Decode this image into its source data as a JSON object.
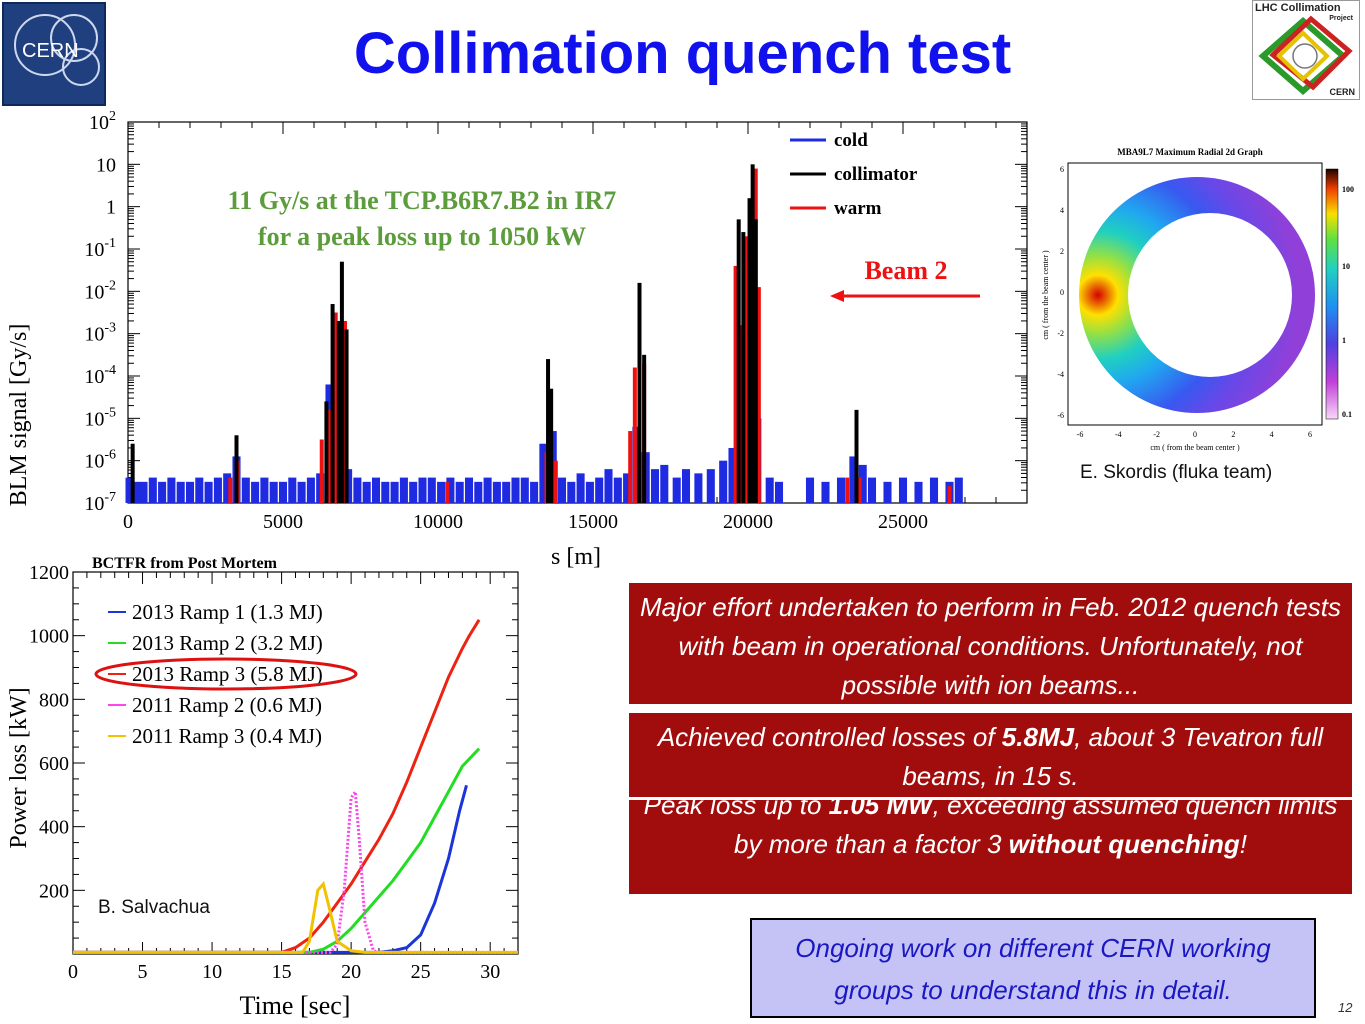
{
  "slide": {
    "title": "Collimation quench test",
    "page_number": "12"
  },
  "logos": {
    "cern_text": "CERN",
    "lhc_line1": "LHC Collimation",
    "lhc_line2": "Project",
    "lhc_line3": "CERN"
  },
  "annotations": {
    "blm_line1": "11 Gy/s at the TCP.B6R7.B2 in IR7",
    "blm_line2": "for a peak loss up to 1050 kW",
    "beam_label": "Beam 2",
    "fluka_credit": "E. Skordis (fluka team)",
    "power_credit": "B. Salvachua"
  },
  "text_boxes": {
    "box1": "Major effort undertaken to perform in Feb. 2012 quench tests with beam in operational conditions. Unfortunately, not possible with ion beams...",
    "box2_a": "Achieved controlled losses of ",
    "box2_b": "5.8MJ",
    "box2_c": ", about 3 Tevatron full beams, in 15 s.",
    "box_hidden_a": "Peak loss up to ",
    "box_hidden_b": "1.05 MW",
    "box_hidden_c": ", exceeding assumed quench limits by more than a factor 3 ",
    "box_hidden_d": "without quenching",
    "box_hidden_e": "!",
    "box3": "Ongoing work on different CERN working groups to understand this in detail."
  },
  "colors": {
    "title": "#1111ee",
    "cold": "#1f2be0",
    "collimator": "#000000",
    "warm": "#ee1111",
    "annotation_green": "#5c9c3c",
    "red_box": "#a10c0c",
    "blue_box": "#c5c3f6"
  },
  "chart_data": [
    {
      "type": "bar",
      "name": "blm",
      "title": "",
      "xlabel": "s [m]",
      "ylabel": "BLM signal [Gy/s]",
      "x_ticks": [
        "0",
        "5000",
        "10000",
        "15000",
        "20000",
        "25000"
      ],
      "xlim": [
        0,
        29000
      ],
      "ylim_log10": [
        -7,
        2
      ],
      "y_ticks": [
        {
          "base": "10",
          "exp": "2"
        },
        {
          "base": "10",
          "exp": ""
        },
        {
          "base": "1",
          "exp": ""
        },
        {
          "base": "10",
          "exp": "-1"
        },
        {
          "base": "10",
          "exp": "-2"
        },
        {
          "base": "10",
          "exp": "-3"
        },
        {
          "base": "10",
          "exp": "-4"
        },
        {
          "base": "10",
          "exp": "-5"
        },
        {
          "base": "10",
          "exp": "-6"
        },
        {
          "base": "10",
          "exp": "-7"
        }
      ],
      "legend": [
        {
          "name": "cold",
          "color": "#1f2be0"
        },
        {
          "name": "collimator",
          "color": "#000000"
        },
        {
          "name": "warm",
          "color": "#ee1111"
        }
      ],
      "legend_position": "top-right",
      "grid": false,
      "series": [
        {
          "name": "cold",
          "points": [
            [
              50,
              -6.4
            ],
            [
              250,
              -6.5
            ],
            [
              500,
              -6.5
            ],
            [
              800,
              -6.4
            ],
            [
              1100,
              -6.5
            ],
            [
              1400,
              -6.4
            ],
            [
              1700,
              -6.5
            ],
            [
              2000,
              -6.5
            ],
            [
              2300,
              -6.4
            ],
            [
              2600,
              -6.5
            ],
            [
              2900,
              -6.4
            ],
            [
              3200,
              -6.3
            ],
            [
              3500,
              -5.9
            ],
            [
              3800,
              -6.4
            ],
            [
              4100,
              -6.5
            ],
            [
              4400,
              -6.4
            ],
            [
              4700,
              -6.5
            ],
            [
              5000,
              -6.5
            ],
            [
              5300,
              -6.4
            ],
            [
              5600,
              -6.5
            ],
            [
              5900,
              -6.4
            ],
            [
              6200,
              -6.3
            ],
            [
              6500,
              -4.2
            ],
            [
              6800,
              -5.2
            ],
            [
              7100,
              -6.2
            ],
            [
              7400,
              -6.4
            ],
            [
              7700,
              -6.5
            ],
            [
              8000,
              -6.4
            ],
            [
              8300,
              -6.5
            ],
            [
              8600,
              -6.5
            ],
            [
              8900,
              -6.4
            ],
            [
              9200,
              -6.5
            ],
            [
              9500,
              -6.4
            ],
            [
              9800,
              -6.4
            ],
            [
              10100,
              -6.5
            ],
            [
              10400,
              -6.4
            ],
            [
              10700,
              -6.5
            ],
            [
              11000,
              -6.4
            ],
            [
              11300,
              -6.5
            ],
            [
              11600,
              -6.4
            ],
            [
              11900,
              -6.5
            ],
            [
              12200,
              -6.5
            ],
            [
              12500,
              -6.4
            ],
            [
              12800,
              -6.4
            ],
            [
              13100,
              -6.5
            ],
            [
              13400,
              -5.6
            ],
            [
              13700,
              -5.3
            ],
            [
              14000,
              -6.4
            ],
            [
              14300,
              -6.5
            ],
            [
              14600,
              -6.3
            ],
            [
              14900,
              -6.5
            ],
            [
              15200,
              -6.4
            ],
            [
              15500,
              -6.2
            ],
            [
              15800,
              -6.4
            ],
            [
              16100,
              -6.3
            ],
            [
              16400,
              -5.2
            ],
            [
              16700,
              -5.8
            ],
            [
              17000,
              -6.2
            ],
            [
              17300,
              -6.1
            ],
            [
              17700,
              -6.4
            ],
            [
              18000,
              -6.2
            ],
            [
              18400,
              -6.3
            ],
            [
              18800,
              -6.2
            ],
            [
              19200,
              -6.0
            ],
            [
              19500,
              -5.7
            ],
            [
              19800,
              -4.0
            ],
            [
              20000,
              -3.0
            ],
            [
              20300,
              -5.0
            ],
            [
              20700,
              -6.4
            ],
            [
              21000,
              -6.5
            ],
            [
              22000,
              -6.4
            ],
            [
              22500,
              -6.5
            ],
            [
              23000,
              -6.4
            ],
            [
              23400,
              -5.9
            ],
            [
              23700,
              -6.1
            ],
            [
              24000,
              -6.4
            ],
            [
              24500,
              -6.5
            ],
            [
              25000,
              -6.4
            ],
            [
              25500,
              -6.5
            ],
            [
              26000,
              -6.4
            ],
            [
              26500,
              -6.5
            ],
            [
              26800,
              -6.4
            ]
          ]
        },
        {
          "name": "collimator",
          "points": [
            [
              150,
              -5.6
            ],
            [
              3500,
              -5.4
            ],
            [
              6400,
              -4.6
            ],
            [
              6600,
              -2.3
            ],
            [
              6800,
              -2.7
            ],
            [
              6900,
              -1.3
            ],
            [
              7050,
              -2.9
            ],
            [
              13550,
              -3.6
            ],
            [
              13650,
              -4.3
            ],
            [
              16500,
              -1.8
            ],
            [
              16650,
              -3.5
            ],
            [
              19700,
              -0.3
            ],
            [
              19850,
              -0.6
            ],
            [
              20050,
              0.2
            ],
            [
              20150,
              1.0
            ],
            [
              20250,
              -0.3
            ],
            [
              23500,
              -4.8
            ]
          ]
        },
        {
          "name": "warm",
          "points": [
            [
              3300,
              -6.4
            ],
            [
              3550,
              -6.0
            ],
            [
              6250,
              -5.5
            ],
            [
              6500,
              -4.8
            ],
            [
              6700,
              -2.5
            ],
            [
              6850,
              -3.0
            ],
            [
              7000,
              -2.7
            ],
            [
              10300,
              -6.5
            ],
            [
              13500,
              -5.8
            ],
            [
              13800,
              -6.0
            ],
            [
              16200,
              -5.3
            ],
            [
              16350,
              -3.8
            ],
            [
              16500,
              -2.1
            ],
            [
              16650,
              -3.7
            ],
            [
              19600,
              -1.4
            ],
            [
              19800,
              -2.8
            ],
            [
              19950,
              -0.7
            ],
            [
              20100,
              -0.1
            ],
            [
              20250,
              0.9
            ],
            [
              20350,
              -1.9
            ],
            [
              23200,
              -6.4
            ],
            [
              23600,
              -6.4
            ],
            [
              26500,
              -6.6
            ]
          ]
        }
      ]
    },
    {
      "type": "line",
      "name": "power_loss",
      "title": "BCTFR from Post Mortem",
      "xlabel": "Time [sec]",
      "ylabel": "Power loss [kW]",
      "xlim": [
        0,
        32
      ],
      "ylim": [
        0,
        1200
      ],
      "x_ticks": [
        0,
        5,
        10,
        15,
        20,
        25,
        30
      ],
      "y_ticks": [
        200,
        400,
        600,
        800,
        1000,
        1200
      ],
      "legend_position": "top-left",
      "grid": false,
      "series": [
        {
          "name": "2013 Ramp 1 (1.3 MJ)",
          "color": "#1a35d8",
          "points": [
            [
              0,
              5
            ],
            [
              22,
              5
            ],
            [
              23,
              10
            ],
            [
              24,
              20
            ],
            [
              25,
              60
            ],
            [
              26,
              160
            ],
            [
              27,
              300
            ],
            [
              27.8,
              450
            ],
            [
              28.3,
              530
            ]
          ]
        },
        {
          "name": "2013 Ramp 2 (3.2 MJ)",
          "color": "#22dd22",
          "points": [
            [
              0,
              5
            ],
            [
              17,
              5
            ],
            [
              18,
              15
            ],
            [
              19,
              40
            ],
            [
              20,
              80
            ],
            [
              21,
              130
            ],
            [
              22,
              180
            ],
            [
              23,
              230
            ],
            [
              24,
              290
            ],
            [
              25,
              350
            ],
            [
              26,
              430
            ],
            [
              27,
              510
            ],
            [
              28,
              590
            ],
            [
              29.2,
              645
            ]
          ]
        },
        {
          "name": "2013 Ramp 3 (5.8 MJ)",
          "color": "#ee2211",
          "points": [
            [
              0,
              5
            ],
            [
              15,
              5
            ],
            [
              16,
              20
            ],
            [
              17,
              50
            ],
            [
              18,
              100
            ],
            [
              19,
              160
            ],
            [
              20,
              220
            ],
            [
              21,
              290
            ],
            [
              22,
              360
            ],
            [
              23,
              440
            ],
            [
              24,
              540
            ],
            [
              25,
              650
            ],
            [
              26,
              760
            ],
            [
              27,
              870
            ],
            [
              28,
              960
            ],
            [
              28.5,
              1000
            ],
            [
              29.2,
              1050
            ]
          ]
        },
        {
          "name": "2011 Ramp 2 (0.6 MJ)",
          "color": "#ff44ee",
          "points": [
            [
              0,
              5
            ],
            [
              18.5,
              5
            ],
            [
              19,
              30
            ],
            [
              19.5,
              200
            ],
            [
              20,
              490
            ],
            [
              20.3,
              510
            ],
            [
              20.6,
              350
            ],
            [
              21,
              100
            ],
            [
              21.6,
              10
            ],
            [
              22,
              5
            ],
            [
              32,
              5
            ]
          ]
        },
        {
          "name": "2011 Ramp 3 (0.4 MJ)",
          "color": "#f2c200",
          "points": [
            [
              0,
              5
            ],
            [
              16.5,
              5
            ],
            [
              17,
              40
            ],
            [
              17.6,
              200
            ],
            [
              18,
              220
            ],
            [
              18.4,
              150
            ],
            [
              19,
              40
            ],
            [
              20,
              10
            ],
            [
              21,
              5
            ],
            [
              32,
              5
            ]
          ]
        }
      ]
    }
  ],
  "fluka_plot": {
    "title": "MBA9L7 Maximum Radial 2d Graph",
    "xlabel": "cm ( from the beam center )",
    "ylabel": "cm ( from the beam center )",
    "x_ticks": [
      "-6",
      "-4",
      "-2",
      "0",
      "2",
      "4",
      "6"
    ],
    "y_ticks": [
      "6",
      "4",
      "2",
      "0",
      "-2",
      "-4",
      "-6"
    ],
    "colorbar_ticks": [
      "100",
      "10",
      "1",
      "0.1"
    ]
  }
}
